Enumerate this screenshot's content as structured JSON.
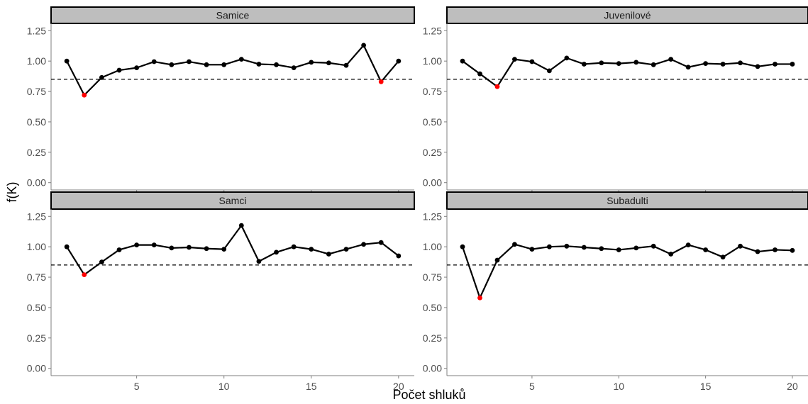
{
  "chart_data": {
    "type": "line",
    "xlabel": "Počet shluků",
    "ylabel": "f(K)",
    "xlim": [
      0.1,
      20.9
    ],
    "ylim": [
      -0.06,
      1.31
    ],
    "x_ticks": [
      5,
      10,
      15,
      20
    ],
    "y_ticks": [
      0.0,
      0.25,
      0.5,
      0.75,
      1.0,
      1.25
    ],
    "y_tick_labels": [
      "0.00",
      "0.25",
      "0.50",
      "0.75",
      "1.00",
      "1.25"
    ],
    "reference_line": 0.85,
    "grid": false,
    "colors": {
      "line": "#000000",
      "point": "#000000",
      "highlight": "#ff0000",
      "strip_fill": "#bebebe"
    },
    "panels": [
      {
        "title": "Samice",
        "x": [
          1,
          2,
          3,
          4,
          5,
          6,
          7,
          8,
          9,
          10,
          11,
          12,
          13,
          14,
          15,
          16,
          17,
          18,
          19,
          20
        ],
        "values": [
          1.0,
          0.72,
          0.865,
          0.925,
          0.945,
          0.995,
          0.97,
          0.995,
          0.97,
          0.97,
          1.015,
          0.975,
          0.97,
          0.945,
          0.99,
          0.985,
          0.965,
          1.13,
          0.83,
          1.0
        ],
        "highlight_x": [
          2,
          19
        ]
      },
      {
        "title": "Juvenilové",
        "x": [
          1,
          2,
          3,
          4,
          5,
          6,
          7,
          8,
          9,
          10,
          11,
          12,
          13,
          14,
          15,
          16,
          17,
          18,
          19,
          20
        ],
        "values": [
          1.0,
          0.895,
          0.79,
          1.015,
          0.995,
          0.92,
          1.025,
          0.975,
          0.985,
          0.98,
          0.99,
          0.97,
          1.015,
          0.95,
          0.98,
          0.975,
          0.985,
          0.955,
          0.975,
          0.975
        ],
        "highlight_x": [
          3
        ]
      },
      {
        "title": "Samci",
        "x": [
          1,
          2,
          3,
          4,
          5,
          6,
          7,
          8,
          9,
          10,
          11,
          12,
          13,
          14,
          15,
          16,
          17,
          18,
          19,
          20
        ],
        "values": [
          1.0,
          0.77,
          0.875,
          0.975,
          1.015,
          1.015,
          0.99,
          0.995,
          0.985,
          0.98,
          1.175,
          0.88,
          0.955,
          1.0,
          0.98,
          0.94,
          0.98,
          1.02,
          1.035,
          0.925
        ],
        "highlight_x": [
          2
        ]
      },
      {
        "title": "Subadulti",
        "x": [
          1,
          2,
          3,
          4,
          5,
          6,
          7,
          8,
          9,
          10,
          11,
          12,
          13,
          14,
          15,
          16,
          17,
          18,
          19,
          20
        ],
        "values": [
          1.0,
          0.58,
          0.89,
          1.02,
          0.98,
          1.0,
          1.005,
          0.995,
          0.985,
          0.975,
          0.99,
          1.005,
          0.94,
          1.015,
          0.975,
          0.915,
          1.005,
          0.96,
          0.975,
          0.97
        ],
        "highlight_x": [
          2
        ]
      }
    ]
  }
}
